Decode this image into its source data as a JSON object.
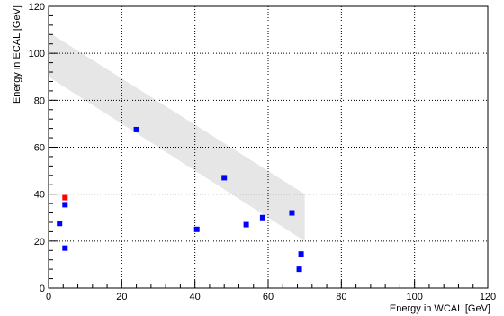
{
  "chart_data": {
    "type": "scatter",
    "xlabel": "Energy in WCAL [GeV]",
    "ylabel": "Energy in ECAL [GeV]",
    "xlim": [
      0,
      120
    ],
    "ylim": [
      0,
      120
    ],
    "xticks": [
      0,
      20,
      40,
      60,
      80,
      100,
      120
    ],
    "yticks": [
      0,
      20,
      40,
      60,
      80,
      100,
      120
    ],
    "grid": true,
    "band": {
      "upper": [
        [
          0,
          109
        ],
        [
          70,
          40
        ]
      ],
      "lower": [
        [
          0,
          90
        ],
        [
          70,
          20
        ]
      ],
      "color": "#e6e6e6"
    },
    "series": [
      {
        "color": "#0000ff",
        "points": [
          [
            3,
            27.5
          ],
          [
            4.5,
            35.5
          ],
          [
            4.5,
            17
          ],
          [
            24,
            67.5
          ],
          [
            40.5,
            25
          ],
          [
            48,
            47
          ],
          [
            54,
            27
          ],
          [
            58.5,
            30
          ],
          [
            66.5,
            32
          ],
          [
            68.5,
            8
          ],
          [
            69,
            14.5
          ]
        ]
      },
      {
        "color": "#ff0000",
        "points": [
          [
            4.5,
            38.5
          ]
        ]
      }
    ]
  }
}
